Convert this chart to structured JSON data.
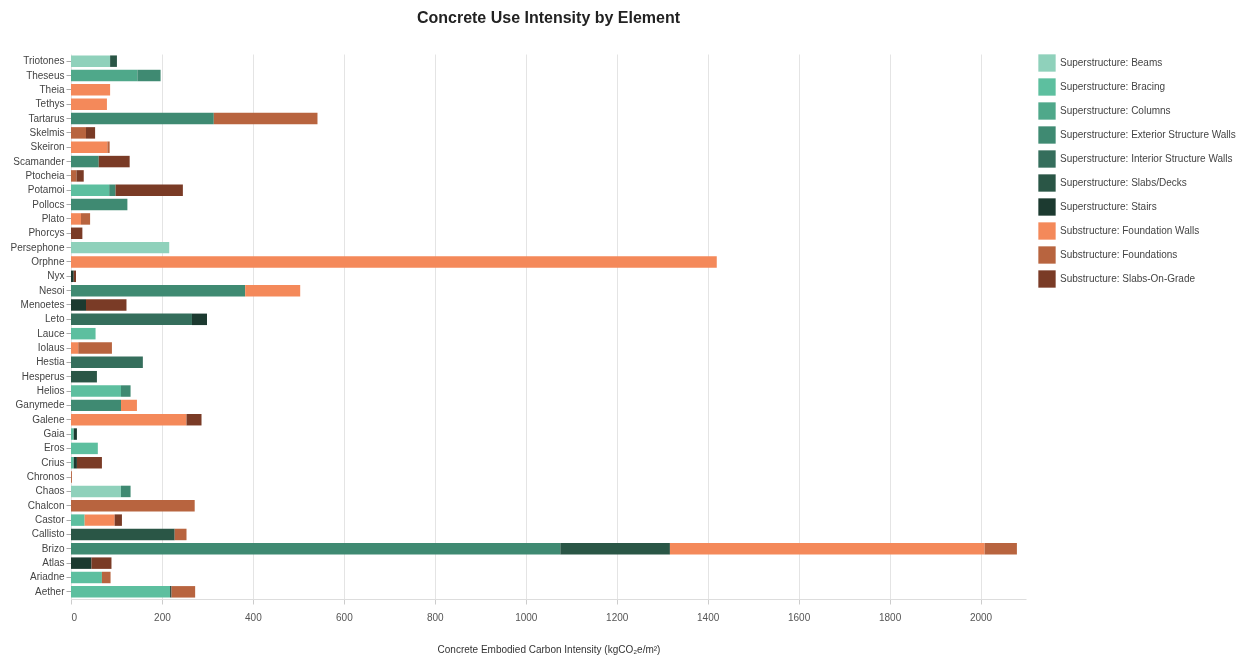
{
  "chart_data": {
    "type": "bar",
    "orientation": "horizontal",
    "stacked": true,
    "title": "Concrete Use Intensity by Element",
    "xlabel": "Concrete Embodied Carbon Intensity (kgCO₂e/m²)",
    "categories": [
      "Triotones",
      "Theseus",
      "Theia",
      "Tethys",
      "Tartarus",
      "Skelmis",
      "Skeiron",
      "Scamander",
      "Ptocheia",
      "Potamoi",
      "Pollocs",
      "Plato",
      "Phorcys",
      "Persephone",
      "Orphne",
      "Nyx",
      "Nesoi",
      "Menoetes",
      "Leto",
      "Lauce",
      "Iolaus",
      "Hestia",
      "Hesperus",
      "Helios",
      "Ganymede",
      "Galene",
      "Gaia",
      "Eros",
      "Crius",
      "Chronos",
      "Chaos",
      "Chalcon",
      "Castor",
      "Callisto",
      "Brizo",
      "Atlas",
      "Ariadne",
      "Aether"
    ],
    "series": [
      {
        "name": "Superstructure: Beams",
        "color": "#8fd1bb",
        "values": [
          86,
          null,
          null,
          null,
          null,
          null,
          null,
          null,
          null,
          null,
          null,
          null,
          null,
          216,
          null,
          null,
          null,
          null,
          null,
          null,
          null,
          null,
          null,
          null,
          null,
          null,
          null,
          null,
          null,
          null,
          110,
          null,
          null,
          null,
          null,
          null,
          null,
          null
        ]
      },
      {
        "name": "Superstructure: Bracing",
        "color": "#5dbf9f",
        "values": [
          null,
          null,
          null,
          null,
          null,
          null,
          null,
          null,
          null,
          84,
          null,
          null,
          null,
          null,
          null,
          null,
          null,
          null,
          null,
          54,
          null,
          null,
          null,
          110,
          null,
          null,
          6,
          59,
          6,
          null,
          null,
          null,
          30,
          null,
          null,
          null,
          68,
          218
        ]
      },
      {
        "name": "Superstructure: Columns",
        "color": "#4fa88a",
        "values": [
          null,
          146,
          null,
          null,
          null,
          null,
          null,
          null,
          null,
          null,
          null,
          null,
          null,
          null,
          null,
          null,
          null,
          null,
          null,
          null,
          null,
          null,
          null,
          null,
          null,
          null,
          null,
          null,
          null,
          null,
          null,
          null,
          null,
          null,
          null,
          null,
          null,
          null
        ]
      },
      {
        "name": "Superstructure: Exterior Structure Walls",
        "color": "#3f8a72",
        "values": [
          null,
          51,
          null,
          null,
          314,
          null,
          null,
          61,
          null,
          14,
          124,
          null,
          null,
          null,
          null,
          null,
          383,
          null,
          null,
          null,
          null,
          null,
          null,
          21,
          110,
          null,
          null,
          null,
          null,
          null,
          21,
          null,
          null,
          null,
          1076,
          null,
          null,
          null
        ]
      },
      {
        "name": "Superstructure: Interior Structure Walls",
        "color": "#356e5c",
        "values": [
          null,
          null,
          null,
          null,
          null,
          null,
          null,
          null,
          null,
          null,
          null,
          null,
          null,
          null,
          null,
          null,
          null,
          null,
          266,
          null,
          null,
          158,
          null,
          null,
          null,
          null,
          null,
          null,
          null,
          null,
          null,
          null,
          null,
          null,
          null,
          null,
          null,
          null
        ]
      },
      {
        "name": "Superstructure: Slabs/Decks",
        "color": "#2a5646",
        "values": [
          15,
          null,
          null,
          null,
          null,
          null,
          null,
          null,
          null,
          null,
          null,
          null,
          null,
          null,
          null,
          null,
          null,
          null,
          null,
          null,
          null,
          null,
          57,
          null,
          null,
          null,
          null,
          null,
          null,
          null,
          null,
          null,
          null,
          228,
          241,
          null,
          null,
          null
        ]
      },
      {
        "name": "Superstructure: Stairs",
        "color": "#1c3a30",
        "values": [
          null,
          null,
          null,
          null,
          null,
          null,
          null,
          null,
          null,
          null,
          null,
          null,
          null,
          null,
          null,
          6,
          null,
          33,
          33,
          null,
          null,
          null,
          null,
          null,
          null,
          null,
          7,
          null,
          7,
          null,
          null,
          null,
          null,
          null,
          null,
          45,
          null,
          3
        ]
      },
      {
        "name": "Substructure: Foundation Walls",
        "color": "#f4895a",
        "values": [
          null,
          null,
          86,
          79,
          null,
          null,
          80,
          null,
          null,
          null,
          null,
          22,
          null,
          null,
          1420,
          null,
          121,
          null,
          null,
          null,
          16,
          null,
          null,
          null,
          35,
          254,
          null,
          null,
          null,
          null,
          null,
          null,
          66,
          null,
          692,
          null,
          null,
          null
        ]
      },
      {
        "name": "Substructure: Foundations",
        "color": "#b8643f",
        "values": [
          null,
          null,
          null,
          null,
          228,
          33,
          5,
          null,
          12,
          null,
          null,
          20,
          null,
          null,
          null,
          null,
          null,
          null,
          null,
          null,
          74,
          null,
          null,
          null,
          null,
          null,
          null,
          null,
          null,
          2,
          null,
          272,
          null,
          26,
          71,
          null,
          19,
          52
        ]
      },
      {
        "name": "Substructure: Slabs-On-Grade",
        "color": "#7a3b26",
        "values": [
          null,
          null,
          null,
          null,
          null,
          20,
          null,
          68,
          16,
          148,
          null,
          null,
          25,
          null,
          null,
          5,
          null,
          89,
          null,
          null,
          null,
          null,
          null,
          null,
          null,
          33,
          null,
          null,
          55,
          null,
          null,
          null,
          16,
          null,
          null,
          44,
          null,
          null
        ]
      }
    ],
    "xlim": [
      0,
      2100
    ],
    "xticks": [
      0,
      200,
      400,
      600,
      800,
      1000,
      1200,
      1400,
      1600,
      1800,
      2000
    ],
    "grid": "x",
    "legend": "top right"
  }
}
